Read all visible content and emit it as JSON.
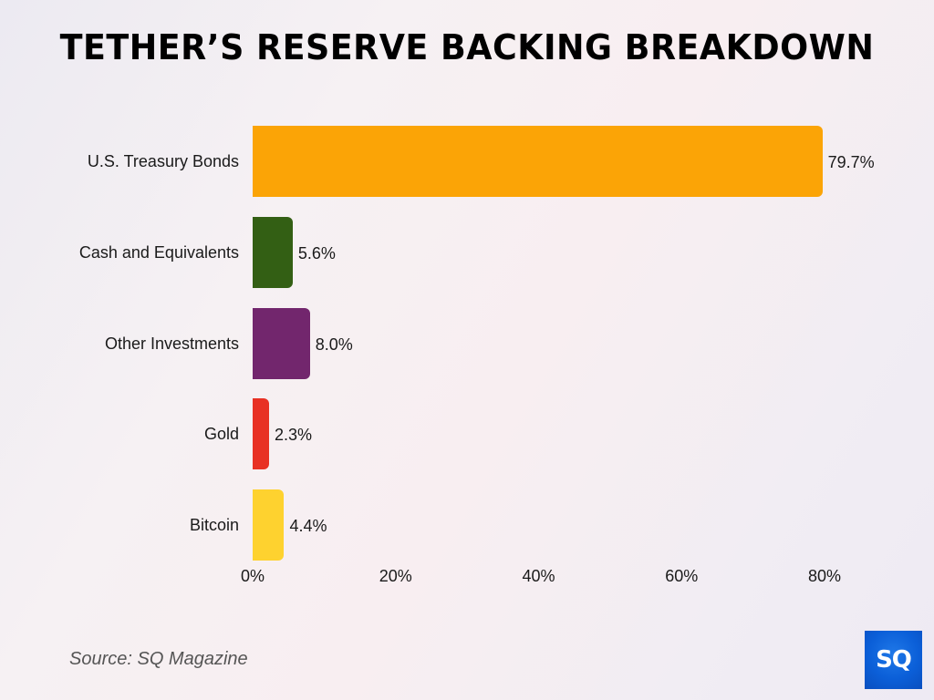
{
  "title": "TETHER’S RESERVE BACKING BREAKDOWN",
  "source": "Source: SQ Magazine",
  "logo": {
    "text": "SQ",
    "color": "#0b5fd8"
  },
  "chart_data": {
    "type": "bar",
    "orientation": "horizontal",
    "title": "TETHER’S RESERVE BACKING BREAKDOWN",
    "categories": [
      "U.S. Treasury Bonds",
      "Cash and Equivalents",
      "Other Investments",
      "Gold",
      "Bitcoin"
    ],
    "values": [
      79.7,
      5.6,
      8.0,
      2.3,
      4.4
    ],
    "value_labels": [
      "79.7%",
      "5.6%",
      "8.0%",
      "2.3%",
      "4.4%"
    ],
    "colors": [
      "#fba406",
      "#335f14",
      "#72266d",
      "#e83124",
      "#fed22f"
    ],
    "xlabel": "",
    "ylabel": "",
    "xlim": [
      0,
      80
    ],
    "x_ticks": [
      "0%",
      "20%",
      "40%",
      "60%",
      "80%"
    ],
    "grid": false,
    "legend": "none"
  }
}
